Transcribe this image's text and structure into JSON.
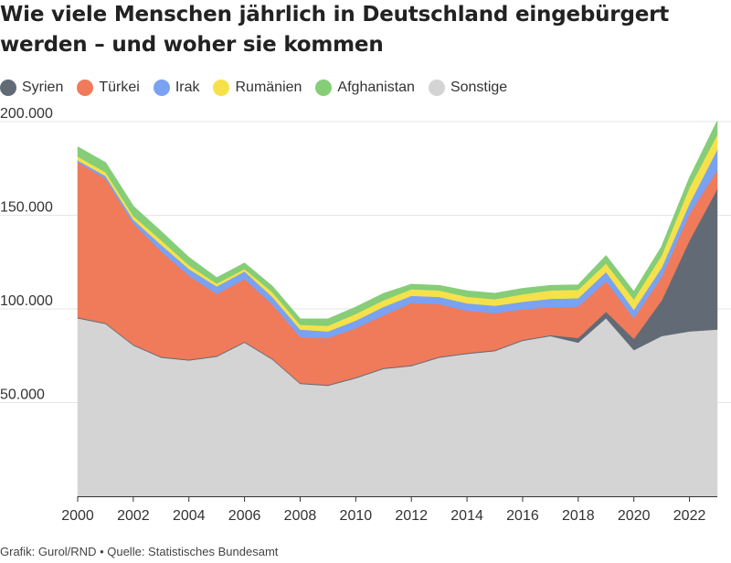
{
  "title": "Wie viele Menschen jährlich in Deutschland eingebürgert werden – und woher sie kommen",
  "footer": "Grafik: Gurol/RND • Quelle: Statistisches Bundesamt",
  "chart_data": {
    "type": "area",
    "stacked": true,
    "x": [
      2000,
      2001,
      2002,
      2003,
      2004,
      2005,
      2006,
      2007,
      2008,
      2009,
      2010,
      2011,
      2012,
      2013,
      2014,
      2015,
      2016,
      2017,
      2018,
      2019,
      2020,
      2021,
      2022,
      2023
    ],
    "x_ticks": [
      2000,
      2002,
      2004,
      2006,
      2008,
      2010,
      2012,
      2014,
      2016,
      2018,
      2020,
      2022
    ],
    "y_ticks": [
      50000,
      100000,
      150000,
      200000
    ],
    "y_tick_labels": [
      "50.000",
      "100.000",
      "150.000",
      "200.000"
    ],
    "ylim": [
      0,
      200000
    ],
    "legend_position": "top-left",
    "series": [
      {
        "name": "Sonstige",
        "color": "#d4d4d4",
        "values": [
          95000,
          92000,
          80500,
          74000,
          72500,
          74500,
          82000,
          73000,
          60000,
          59000,
          63000,
          68000,
          69500,
          74000,
          76000,
          77500,
          83000,
          85500,
          82000,
          95000,
          78000,
          85500,
          88000,
          89000
        ]
      },
      {
        "name": "Syrien",
        "color": "#626b75",
        "values": [
          500,
          500,
          500,
          500,
          500,
          500,
          500,
          500,
          500,
          500,
          500,
          500,
          500,
          500,
          500,
          500,
          500,
          500,
          2500,
          3500,
          6000,
          19000,
          48500,
          75000
        ]
      },
      {
        "name": "Türkei",
        "color": "#ef7b5a",
        "values": [
          82800,
          77000,
          64600,
          56200,
          44700,
          33000,
          33400,
          28900,
          24500,
          25000,
          26200,
          28100,
          33200,
          28100,
          22500,
          19700,
          16300,
          14900,
          16700,
          16200,
          11000,
          12500,
          14200,
          10000
        ]
      },
      {
        "name": "Irak",
        "color": "#7aa2f2",
        "values": [
          1000,
          1500,
          2000,
          3500,
          3600,
          4000,
          4100,
          4000,
          4000,
          3500,
          4100,
          4500,
          3800,
          3800,
          4000,
          4000,
          4000,
          4500,
          4500,
          5000,
          4500,
          5000,
          5500,
          11000
        ]
      },
      {
        "name": "Rumänien",
        "color": "#f6e14a",
        "values": [
          2000,
          2000,
          2000,
          2500,
          2000,
          1500,
          1300,
          2500,
          2500,
          3000,
          3500,
          3500,
          3500,
          3500,
          3500,
          3500,
          4000,
          4500,
          4500,
          4500,
          5500,
          6500,
          8500,
          8000
        ]
      },
      {
        "name": "Afghanistan",
        "color": "#86cd77",
        "values": [
          5000,
          5000,
          5000,
          4500,
          4000,
          3000,
          3000,
          3000,
          3000,
          3500,
          3500,
          3500,
          2500,
          2500,
          3000,
          3000,
          3000,
          2500,
          2500,
          4000,
          4000,
          4500,
          5000,
          7000
        ]
      }
    ]
  },
  "legend": [
    {
      "label": "Syrien",
      "color": "#626b75"
    },
    {
      "label": "Türkei",
      "color": "#ef7b5a"
    },
    {
      "label": "Irak",
      "color": "#7aa2f2"
    },
    {
      "label": "Rumänien",
      "color": "#f6e14a"
    },
    {
      "label": "Afghanistan",
      "color": "#86cd77"
    },
    {
      "label": "Sonstige",
      "color": "#d4d4d4"
    }
  ]
}
